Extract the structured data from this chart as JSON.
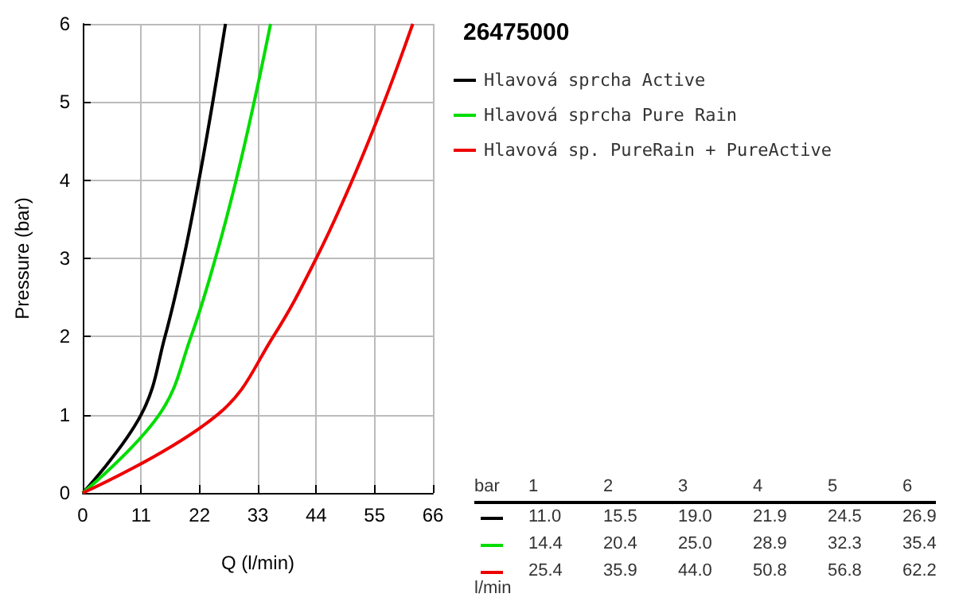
{
  "chart_data": {
    "type": "line",
    "title": "26475000",
    "xlabel": "Q (l/min)",
    "ylabel": "Pressure (bar)",
    "xlim": [
      0,
      66
    ],
    "xticks": [
      0,
      11,
      22,
      33,
      44,
      55,
      66
    ],
    "ylim": [
      0,
      6
    ],
    "yticks": [
      0,
      1,
      2,
      3,
      4,
      5,
      6
    ],
    "grid": true,
    "legend": "top right",
    "series": [
      {
        "name": "Hlavová sprcha Active",
        "color": "#000000",
        "x": [
          0,
          11.0,
          15.5,
          19.0,
          21.9,
          24.5,
          26.9
        ],
        "values": [
          0,
          1,
          2,
          3,
          4,
          5,
          6
        ]
      },
      {
        "name": "Hlavová sprcha Pure Rain",
        "color": "#00dd00",
        "x": [
          0,
          14.4,
          20.4,
          25.0,
          28.9,
          32.3,
          35.4
        ],
        "values": [
          0,
          1,
          2,
          3,
          4,
          5,
          6
        ]
      },
      {
        "name": "Hlavová sp. PureRain + PureActive",
        "color": "#ee0000",
        "x": [
          0,
          25.4,
          35.9,
          44.0,
          50.8,
          56.8,
          62.2
        ],
        "values": [
          0,
          1,
          2,
          3,
          4,
          5,
          6
        ]
      }
    ],
    "annotations": [
      "bar",
      "l/min",
      "1",
      "2",
      "3",
      "4",
      "5",
      "6",
      "11.0",
      "15.5",
      "19.0",
      "21.9",
      "24.5",
      "26.9",
      "14.4",
      "20.4",
      "25.0",
      "28.9",
      "32.3",
      "35.4",
      "25.4",
      "35.9",
      "44.0",
      "50.8",
      "56.8",
      "62.2"
    ]
  }
}
